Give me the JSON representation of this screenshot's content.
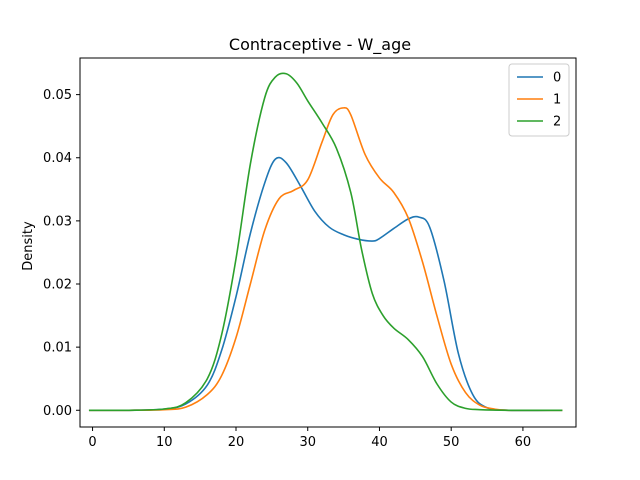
{
  "chart_data": {
    "type": "line",
    "title": "Contraceptive - W_age",
    "xlabel": "",
    "ylabel": "Density",
    "xlim": [
      -1.75,
      67.4
    ],
    "ylim": [
      -0.00265,
      0.0558
    ],
    "xticks": [
      0,
      10,
      20,
      30,
      40,
      50,
      60
    ],
    "yticks": [
      0.0,
      0.01,
      0.02,
      0.03,
      0.04,
      0.05
    ],
    "ytick_labels": [
      "0.00",
      "0.01",
      "0.02",
      "0.03",
      "0.04",
      "0.05"
    ],
    "grid": false,
    "legend_position": "top-right",
    "series": [
      {
        "name": "0",
        "color": "#1f77b4",
        "x": [
          -0.5,
          5,
          10,
          13,
          16,
          18,
          20,
          22,
          24,
          25.5,
          27,
          29,
          31,
          33,
          35,
          37,
          39,
          40,
          42,
          44,
          45.5,
          47,
          49,
          51,
          53,
          55,
          58,
          65.5
        ],
        "y": [
          0.0,
          0.0,
          0.0002,
          0.001,
          0.004,
          0.0095,
          0.018,
          0.028,
          0.036,
          0.0398,
          0.0392,
          0.0355,
          0.0315,
          0.029,
          0.0278,
          0.0271,
          0.0268,
          0.0272,
          0.0288,
          0.0303,
          0.0306,
          0.029,
          0.0205,
          0.009,
          0.0025,
          0.0004,
          0.0,
          0.0
        ]
      },
      {
        "name": "1",
        "color": "#ff7f0e",
        "x": [
          -0.5,
          5,
          10,
          13,
          16,
          18,
          20,
          22,
          24,
          26,
          28,
          30,
          32,
          33.5,
          35,
          36,
          38,
          40,
          42,
          44,
          46,
          48,
          50,
          52,
          54,
          56,
          58,
          65.5
        ],
        "y": [
          0.0,
          0.0,
          0.0001,
          0.0005,
          0.0025,
          0.0055,
          0.0115,
          0.02,
          0.0285,
          0.0335,
          0.0348,
          0.0365,
          0.0425,
          0.0468,
          0.0479,
          0.0468,
          0.0405,
          0.0368,
          0.0345,
          0.0305,
          0.0235,
          0.015,
          0.0073,
          0.0028,
          0.0008,
          0.0002,
          0.0,
          0.0
        ]
      },
      {
        "name": "2",
        "color": "#2ca02c",
        "x": [
          -0.5,
          5,
          10,
          13,
          16,
          18,
          20,
          22,
          24,
          25.5,
          27,
          28.5,
          30,
          32,
          34,
          36,
          37.5,
          39,
          40.5,
          42,
          44,
          46,
          48,
          50,
          52,
          54,
          58,
          65.5
        ],
        "y": [
          0.0,
          0.0,
          0.0002,
          0.0012,
          0.005,
          0.012,
          0.024,
          0.039,
          0.0495,
          0.0528,
          0.0533,
          0.0518,
          0.049,
          0.0455,
          0.0415,
          0.0345,
          0.0255,
          0.0185,
          0.015,
          0.013,
          0.0112,
          0.0085,
          0.0042,
          0.0013,
          0.0003,
          0.0001,
          0.0,
          0.0
        ]
      }
    ]
  }
}
